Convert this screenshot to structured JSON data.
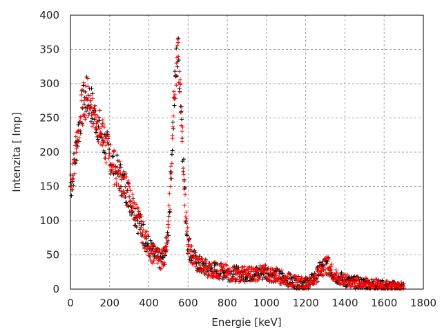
{
  "chart_data": {
    "type": "scatter",
    "xlabel": "Energie [keV]",
    "ylabel": "Intenzita [ Imp]",
    "xlim": [
      0,
      1800
    ],
    "ylim": [
      0,
      400
    ],
    "xticks": [
      "0",
      "200",
      "400",
      "600",
      "800",
      "1000",
      "1200",
      "1400",
      "1600",
      "1800"
    ],
    "yticks": [
      "0",
      "50",
      "100",
      "150",
      "200",
      "250",
      "300",
      "350",
      "400"
    ],
    "grid": true,
    "marker": "plus",
    "colors": [
      "#ff0000",
      "#000000"
    ],
    "series": [
      {
        "x": [
          0,
          10,
          20,
          30,
          40,
          50,
          60,
          70,
          80,
          90,
          100,
          110,
          120,
          130,
          140,
          150,
          160,
          170,
          180,
          200,
          220,
          240,
          260,
          280,
          300,
          320,
          340,
          360,
          380,
          400,
          420,
          440,
          460,
          480,
          490,
          500,
          510,
          520,
          530,
          540,
          550,
          560,
          570,
          580,
          590,
          600,
          620,
          640,
          660,
          700,
          750,
          800,
          850,
          900,
          950,
          1000,
          1050,
          1100,
          1150,
          1200,
          1220,
          1250,
          1280,
          1300,
          1320,
          1350,
          1400,
          1450,
          1500,
          1550,
          1600,
          1650,
          1700
        ],
        "y": [
          150,
          160,
          185,
          205,
          230,
          250,
          265,
          275,
          280,
          280,
          275,
          265,
          255,
          250,
          245,
          235,
          225,
          215,
          210,
          195,
          180,
          170,
          160,
          150,
          135,
          120,
          105,
          90,
          75,
          62,
          52,
          45,
          43,
          50,
          62,
          90,
          150,
          220,
          280,
          330,
          340,
          300,
          230,
          160,
          100,
          65,
          48,
          40,
          35,
          30,
          27,
          24,
          22,
          22,
          23,
          24,
          20,
          15,
          10,
          9,
          10,
          18,
          30,
          36,
          32,
          20,
          12,
          10,
          8,
          7,
          5,
          4,
          3
        ]
      }
    ]
  }
}
